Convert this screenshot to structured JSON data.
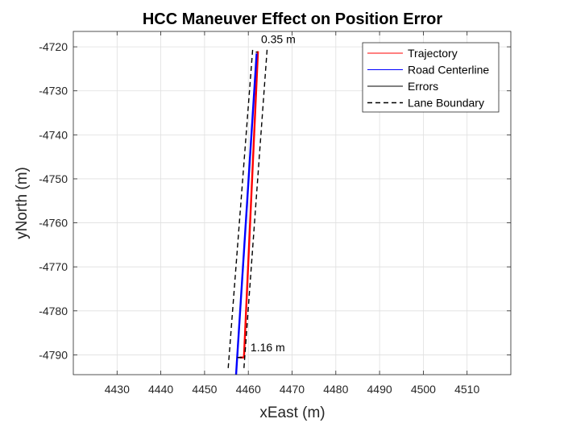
{
  "chart_data": {
    "type": "line",
    "title": "HCC Maneuver Effect on Position Error",
    "xlabel": "xEast (m)",
    "ylabel": "yNorth (m)",
    "xlim": [
      4420,
      4520
    ],
    "ylim": [
      -4794.5,
      -4716.5
    ],
    "xticks": [
      4430,
      4440,
      4450,
      4460,
      4470,
      4480,
      4490,
      4500,
      4510
    ],
    "yticks": [
      -4790,
      -4780,
      -4770,
      -4760,
      -4750,
      -4740,
      -4730,
      -4720
    ],
    "grid": true,
    "legend_position": "top-right",
    "series": [
      {
        "name": "Trajectory",
        "color": "#ff0000",
        "style": "solid",
        "x": [
          4458.0,
          4459.0,
          4462.2
        ],
        "y": [
          -4790.6,
          -4790.6,
          -4721.0
        ]
      },
      {
        "name": "Road Centerline",
        "color": "#0000ff",
        "style": "solid",
        "x": [
          4457.2,
          4461.9
        ],
        "y": [
          -4794.5,
          -4721.5
        ]
      },
      {
        "name": "Errors",
        "color": "#000000",
        "style": "solid",
        "segments": [
          {
            "x": [
              4457.5,
              4458.6
            ],
            "y": [
              -4790.6,
              -4790.6
            ]
          },
          {
            "x": [
              4461.7,
              4462.1
            ],
            "y": [
              -4721.2,
              -4721.2
            ]
          }
        ]
      },
      {
        "name": "Lane Boundary",
        "color": "#000000",
        "style": "dashed",
        "segments": [
          {
            "x": [
              4455.4,
              4461.0
            ],
            "y": [
              -4793.0,
              -4720.5
            ]
          },
          {
            "x": [
              4459.0,
              4464.3
            ],
            "y": [
              -4793.0,
              -4720.5
            ]
          }
        ]
      }
    ],
    "annotations": [
      {
        "text": "0.35 m",
        "x": 4462.9,
        "y": -4719.2
      },
      {
        "text": "1.16 m",
        "x": 4460.5,
        "y": -4789.2
      }
    ]
  }
}
